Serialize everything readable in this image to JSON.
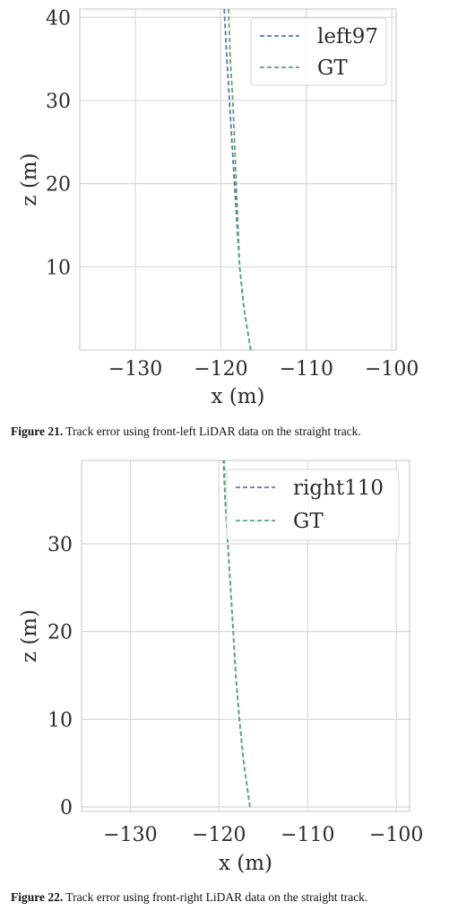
{
  "figures": [
    {
      "caption_label": "Figure 21.",
      "caption_text": "Track error using front-left LiDAR data on the straight track."
    },
    {
      "caption_label": "Figure 22.",
      "caption_text": "Track error using front-right LiDAR data on the straight track."
    }
  ],
  "chart_data": [
    {
      "type": "line",
      "title": "",
      "xlabel": "x (m)",
      "ylabel": "z (m)",
      "xlim": [
        -136.5,
        -99.5
      ],
      "ylim": [
        0,
        41
      ],
      "xticks": [
        -130,
        -120,
        -110,
        -100
      ],
      "xtick_labels": [
        "−130",
        "−120",
        "−110",
        "−100"
      ],
      "yticks": [
        10,
        20,
        30,
        40
      ],
      "ytick_labels": [
        "10",
        "20",
        "30",
        "40"
      ],
      "grid": true,
      "legend_placement": "top-right",
      "series": [
        {
          "name": "left97",
          "color": "#5b74b8",
          "line_style": "dashed",
          "x": [
            -116.5,
            -117.3,
            -117.8,
            -118.1,
            -118.4,
            -118.7,
            -119.0,
            -119.3,
            -119.6
          ],
          "z": [
            0,
            5,
            10,
            15,
            20,
            25,
            30,
            35,
            41
          ]
        },
        {
          "name": "GT",
          "color": "#5aa872",
          "line_style": "dashed",
          "x": [
            -116.5,
            -117.3,
            -117.8,
            -118.0,
            -118.2,
            -118.4,
            -118.6,
            -118.9,
            -119.1
          ],
          "z": [
            0,
            5,
            10,
            15,
            20,
            25,
            30,
            35,
            41
          ]
        }
      ]
    },
    {
      "type": "line",
      "title": "",
      "xlabel": "x (m)",
      "ylabel": "z (m)",
      "xlim": [
        -135.5,
        -98.5
      ],
      "ylim": [
        -0.5,
        39.5
      ],
      "xticks": [
        -130,
        -120,
        -110,
        -100
      ],
      "xtick_labels": [
        "−130",
        "−120",
        "−110",
        "−100"
      ],
      "yticks": [
        0,
        10,
        20,
        30
      ],
      "ytick_labels": [
        "0",
        "10",
        "20",
        "30"
      ],
      "grid": true,
      "legend_placement": "top-right",
      "series": [
        {
          "name": "right110",
          "color": "#5b74b8",
          "line_style": "dashed",
          "x": [
            -116.5,
            -117.2,
            -117.7,
            -118.1,
            -118.4,
            -118.7,
            -119.0,
            -119.3,
            -119.5
          ],
          "z": [
            0,
            5,
            10,
            15,
            20,
            25,
            30,
            35,
            39.5
          ]
        },
        {
          "name": "GT",
          "color": "#5aa872",
          "line_style": "dashed",
          "x": [
            -116.5,
            -117.2,
            -117.7,
            -118.1,
            -118.4,
            -118.7,
            -119.0,
            -119.3,
            -119.4
          ],
          "z": [
            0,
            5,
            10,
            15,
            20,
            25,
            30,
            35,
            39.5
          ]
        }
      ]
    }
  ]
}
